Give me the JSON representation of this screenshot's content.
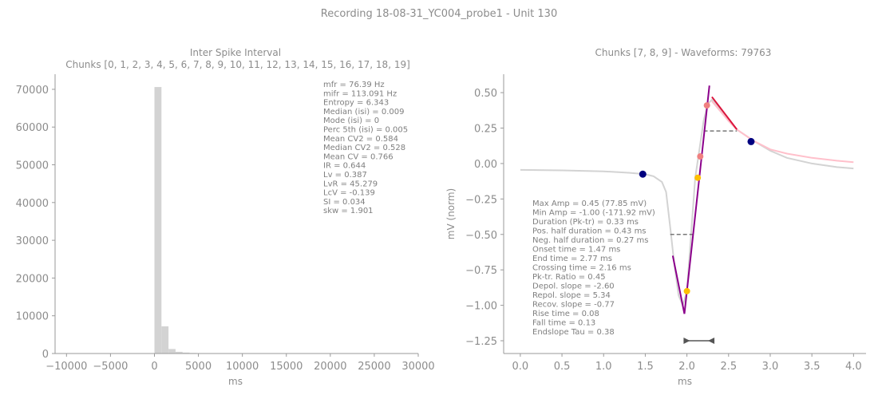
{
  "figure": {
    "title": "Recording 18-08-31_YC004_probe1 - Unit 130"
  },
  "chart_data": [
    {
      "type": "bar",
      "title_line1": "Inter Spike Interval",
      "title_line2": "Chunks [0, 1, 2, 3, 4, 5, 6, 7, 8, 9, 10, 11, 12, 13, 14, 15, 16, 17, 18, 19]",
      "xlabel": "ms",
      "ylabel": "",
      "xlim": [
        -11300,
        30000
      ],
      "ylim": [
        0,
        74000
      ],
      "xticks": [
        -10000,
        -5000,
        0,
        5000,
        10000,
        15000,
        20000,
        25000,
        30000
      ],
      "xtick_labels": [
        "−10000",
        "−5000",
        "0",
        "5000",
        "10000",
        "15000",
        "20000",
        "25000",
        "30000"
      ],
      "yticks": [
        0,
        10000,
        20000,
        30000,
        40000,
        50000,
        60000,
        70000
      ],
      "ytick_labels": [
        "0",
        "10000",
        "20000",
        "30000",
        "40000",
        "50000",
        "60000",
        "70000"
      ],
      "bar_color": "#d3d3d3",
      "bins": [
        {
          "x0": 0,
          "x1": 800,
          "value": 70600
        },
        {
          "x0": 800,
          "x1": 1600,
          "value": 7200
        },
        {
          "x0": 1600,
          "x1": 2400,
          "value": 1200
        },
        {
          "x0": 2400,
          "x1": 3200,
          "value": 450
        },
        {
          "x0": 3200,
          "x1": 4000,
          "value": 250
        },
        {
          "x0": 4000,
          "x1": 4800,
          "value": 150
        },
        {
          "x0": 4800,
          "x1": 5600,
          "value": 80
        }
      ],
      "stats": [
        "mfr = 76.39 Hz",
        "mifr = 113.091 Hz",
        "Entropy = 6.343",
        "Median (isi) = 0.009",
        "Mode (isi) = 0",
        "Perc 5th (isi) = 0.005",
        "Mean CV2 = 0.584",
        "Median CV2 = 0.528",
        "Mean CV = 0.766",
        "IR = 0.644",
        "Lv = 0.387",
        "LvR = 45.279",
        "LcV = -0.139",
        "SI = 0.034",
        "skw = 1.901"
      ]
    },
    {
      "type": "line",
      "title": "Chunks [7, 8, 9] - Waveforms: 79763",
      "xlabel": "ms",
      "ylabel": "mV (norm)",
      "xlim": [
        -0.2,
        4.15
      ],
      "ylim": [
        -1.34,
        0.63
      ],
      "xticks": [
        0.0,
        0.5,
        1.0,
        1.5,
        2.0,
        2.5,
        3.0,
        3.5,
        4.0
      ],
      "xtick_labels": [
        "0.0",
        "0.5",
        "1.0",
        "1.5",
        "2.0",
        "2.5",
        "3.0",
        "3.5",
        "4.0"
      ],
      "yticks": [
        0.5,
        0.25,
        0.0,
        -0.25,
        -0.5,
        -0.75,
        -1.0,
        -1.25
      ],
      "ytick_labels": [
        "0.50",
        "0.25",
        "0.00",
        "−0.25",
        "−0.50",
        "−0.75",
        "−1.00",
        "−1.25"
      ],
      "series": [
        {
          "color": "#d3d3d3",
          "x": [
            0.0,
            0.5,
            1.0,
            1.3,
            1.5,
            1.6,
            1.7,
            1.75,
            1.8,
            1.85,
            1.9,
            1.95,
            2.0,
            2.05,
            2.1,
            2.15,
            2.2,
            2.25,
            2.3,
            2.4,
            2.5,
            2.6,
            2.8,
            3.0,
            3.2,
            3.5,
            3.8,
            4.0
          ],
          "y": [
            -0.045,
            -0.048,
            -0.055,
            -0.065,
            -0.075,
            -0.09,
            -0.13,
            -0.2,
            -0.45,
            -0.72,
            -0.93,
            -1.0,
            -0.9,
            -0.5,
            -0.1,
            0.1,
            0.3,
            0.42,
            0.45,
            0.38,
            0.3,
            0.24,
            0.16,
            0.09,
            0.04,
            0.0,
            -0.025,
            -0.035
          ]
        },
        {
          "color": "#ffc0cb",
          "x": [
            2.3,
            2.4,
            2.5,
            2.6,
            2.8,
            3.0,
            3.2,
            3.5,
            3.8,
            4.0
          ],
          "y": [
            0.44,
            0.37,
            0.3,
            0.24,
            0.16,
            0.1,
            0.07,
            0.04,
            0.02,
            0.01
          ]
        }
      ],
      "fit_lines": [
        {
          "color": "#8b008b",
          "x": [
            1.83,
            1.97
          ],
          "y": [
            -0.65,
            -1.06
          ]
        },
        {
          "color": "#8b008b",
          "x": [
            1.97,
            2.27
          ],
          "y": [
            -1.06,
            0.55
          ]
        },
        {
          "color": "#dc143c",
          "x": [
            2.3,
            2.6
          ],
          "y": [
            0.47,
            0.24
          ]
        }
      ],
      "half_width_lines": [
        {
          "x": [
            1.8,
            2.07
          ],
          "y": [
            -0.5,
            -0.5
          ]
        },
        {
          "x": [
            2.2,
            2.6
          ],
          "y": [
            0.23,
            0.23
          ]
        }
      ],
      "markers": [
        {
          "x": 1.47,
          "y": -0.075,
          "color": "#000080",
          "size": 4.5
        },
        {
          "x": 2.77,
          "y": 0.155,
          "color": "#000080",
          "size": 4.5
        },
        {
          "x": 2.0,
          "y": -0.9,
          "color": "#ffbf00",
          "size": 4
        },
        {
          "x": 2.13,
          "y": -0.1,
          "color": "#ffbf00",
          "size": 4
        },
        {
          "x": 2.16,
          "y": 0.05,
          "color": "#f08080",
          "size": 4
        },
        {
          "x": 2.24,
          "y": 0.41,
          "color": "#f08080",
          "size": 4
        }
      ],
      "duration_arrow": {
        "x0": 1.96,
        "x1": 2.33,
        "y": -1.25,
        "color": "#555555"
      },
      "stats": [
        "Max Amp = 0.45 (77.85 mV)",
        "Min Amp = -1.00 (-171.92 mV)",
        "Duration (Pk-tr) = 0.33 ms",
        "Pos. half duration = 0.43 ms",
        "Neg. half duration = 0.27 ms",
        "Onset time = 1.47 ms",
        "End time = 2.77 ms",
        "Crossing time = 2.16 ms",
        "Pk-tr. Ratio = 0.45",
        "Depol. slope = -2.60",
        "Repol. slope = 5.34",
        "Recov. slope = -0.77",
        "Rise time = 0.08",
        "Fall time = 0.13",
        "Endslope Tau = 0.38"
      ]
    }
  ]
}
